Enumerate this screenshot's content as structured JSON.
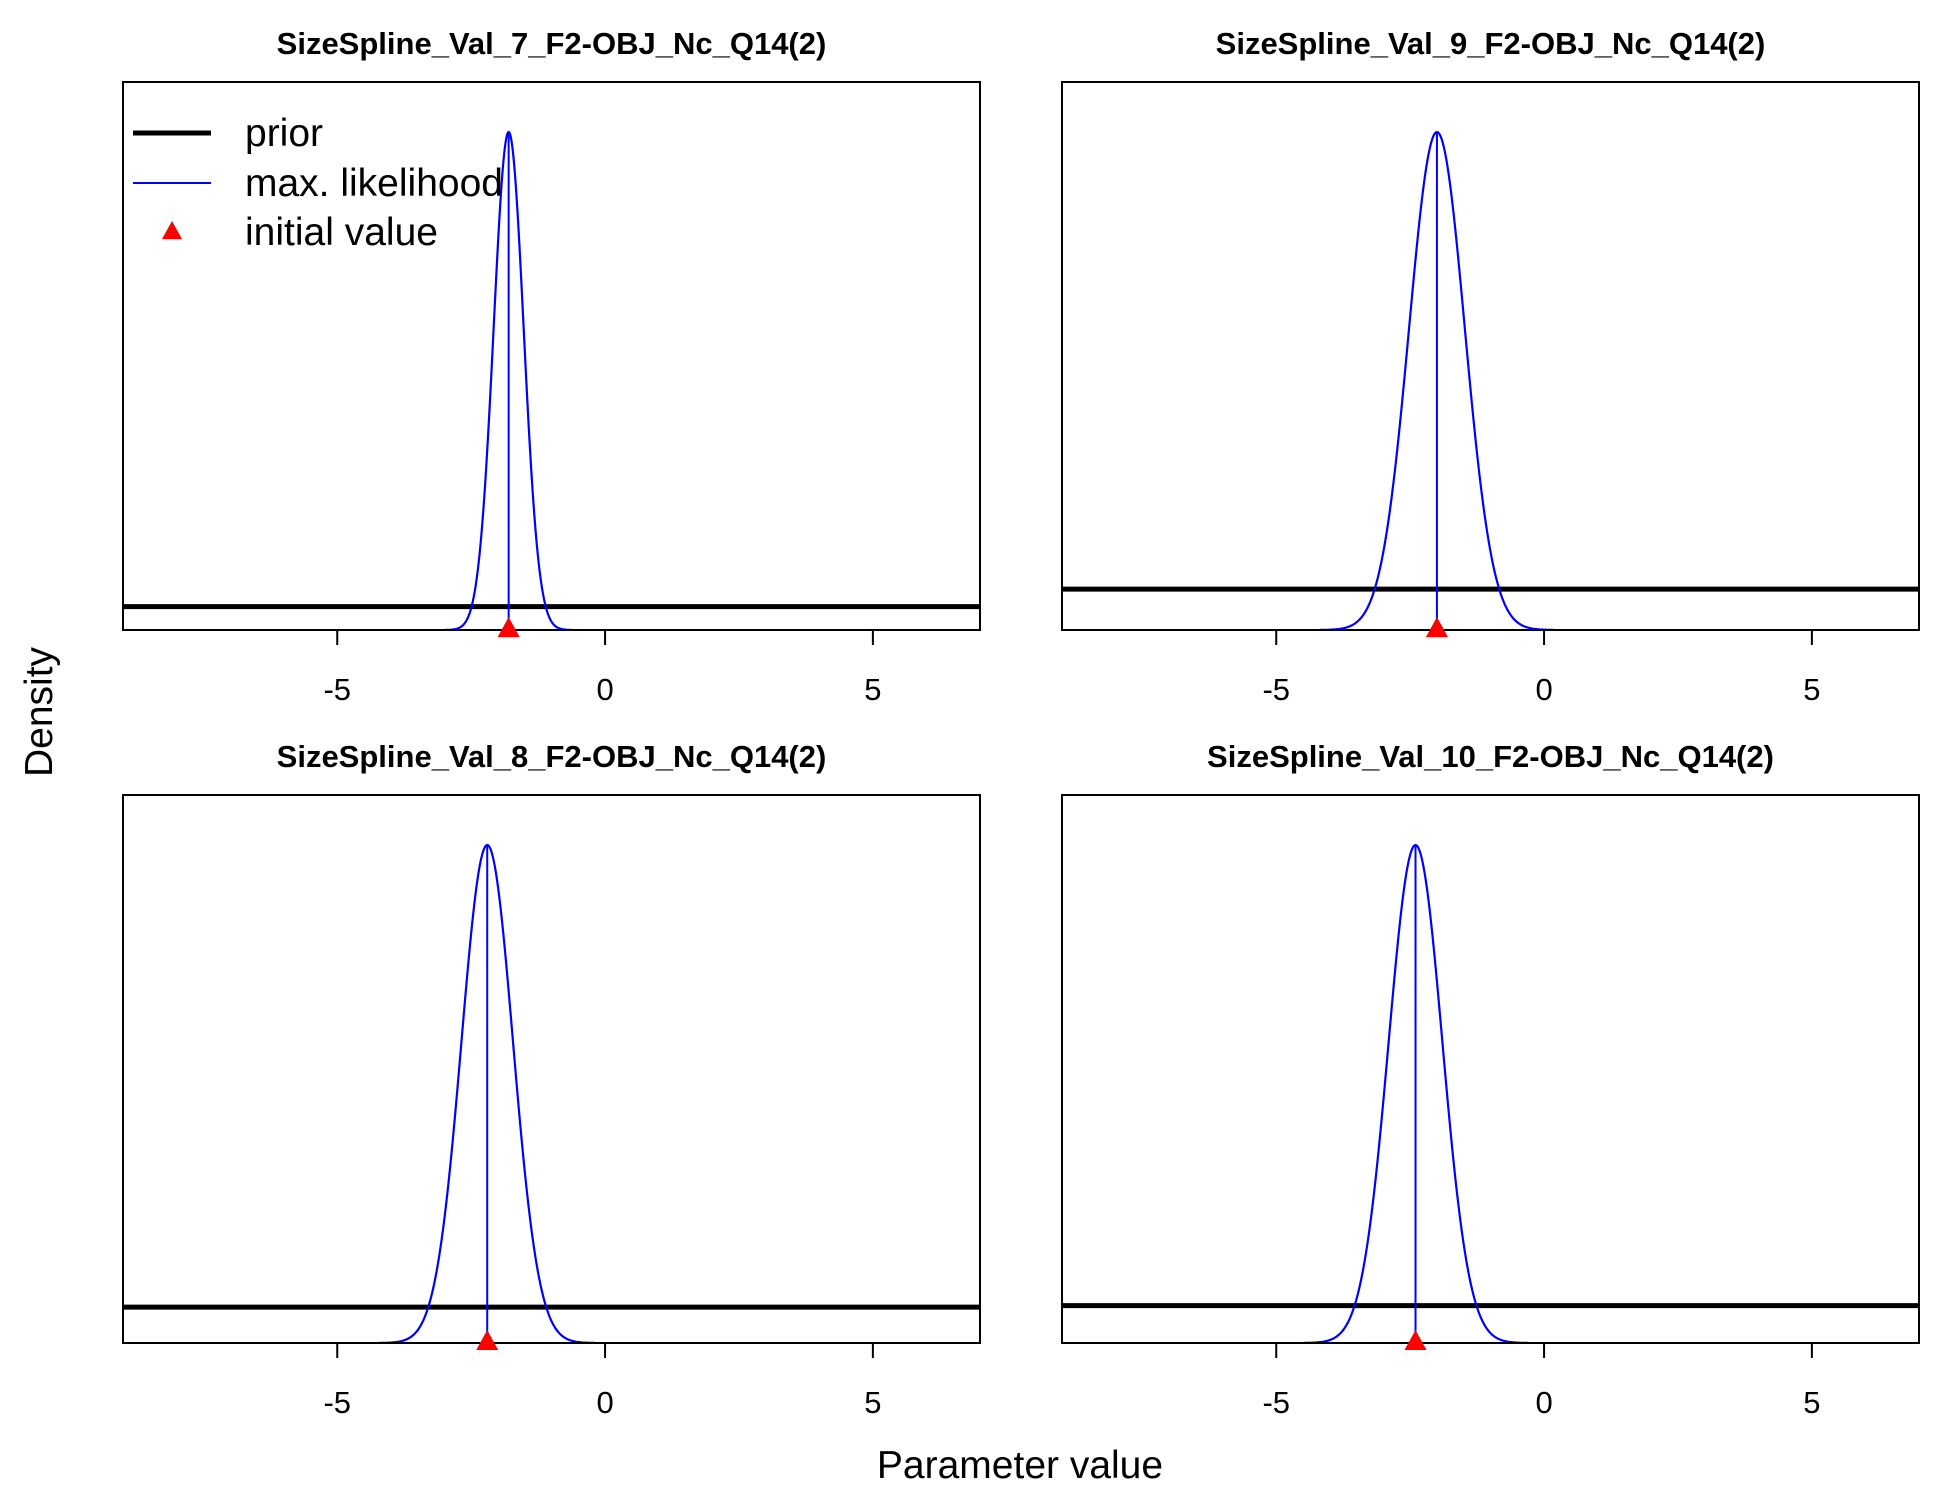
{
  "colors": {
    "prior": "#000000",
    "max_likelihood": "#0000ff",
    "initial_value": "#ff0000"
  },
  "chart_data": {
    "type": "line",
    "xlabel": "Parameter value",
    "ylabel": "Density",
    "xlim": [
      -9,
      7
    ],
    "xticks": [
      -5,
      0,
      5
    ],
    "grid": false,
    "legend": {
      "placement": "top-left",
      "panel": 0,
      "entries": [
        {
          "label": "prior",
          "style": "thick-line"
        },
        {
          "label": "max. likelihood",
          "style": "thin-line"
        },
        {
          "label": "initial value",
          "style": "triangle"
        }
      ]
    },
    "panels": [
      {
        "title": "SizeSpline_Val_7_F2-OBJ_Nc_Q14(2)",
        "prior_level": 0.047,
        "ml_mean": -1.8,
        "ml_sd": 0.28,
        "initial_value": -1.8
      },
      {
        "title": "SizeSpline_Val_9_F2-OBJ_Nc_Q14(2)",
        "prior_level": 0.082,
        "ml_mean": -2.0,
        "ml_sd": 0.52,
        "initial_value": -2.0
      },
      {
        "title": "SizeSpline_Val_8_F2-OBJ_Nc_Q14(2)",
        "prior_level": 0.072,
        "ml_mean": -2.2,
        "ml_sd": 0.48,
        "initial_value": -2.2
      },
      {
        "title": "SizeSpline_Val_10_F2-OBJ_Nc_Q14(2)",
        "prior_level": 0.075,
        "ml_mean": -2.4,
        "ml_sd": 0.5,
        "initial_value": -2.4
      }
    ]
  }
}
